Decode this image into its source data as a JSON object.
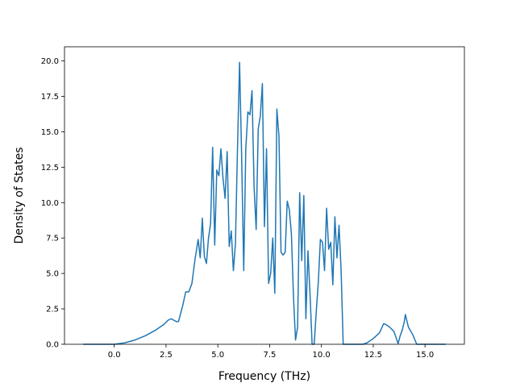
{
  "chart_data": {
    "type": "line",
    "title": "",
    "xlabel": "Frequency (THz)",
    "ylabel": "Density of States",
    "xlim": [
      -2.4,
      16.9
    ],
    "ylim": [
      0,
      21.0
    ],
    "xticks": [
      0.0,
      2.5,
      5.0,
      7.5,
      10.0,
      12.5,
      15.0
    ],
    "xtick_labels": [
      "0.0",
      "2.5",
      "5.0",
      "7.5",
      "10.0",
      "12.5",
      "15.0"
    ],
    "yticks": [
      0.0,
      2.5,
      5.0,
      7.5,
      10.0,
      12.5,
      15.0,
      17.5,
      20.0
    ],
    "ytick_labels": [
      "0.0",
      "2.5",
      "5.0",
      "7.5",
      "10.0",
      "12.5",
      "15.0",
      "17.5",
      "20.0"
    ],
    "grid": false,
    "color": "#1f77b4",
    "series": [
      {
        "x": [
          -1.5,
          0.0,
          0.5,
          1.0,
          1.5,
          2.0,
          2.4,
          2.6,
          2.75,
          3.0,
          3.1,
          3.3,
          3.45,
          3.6,
          3.75,
          3.9,
          4.05,
          4.15,
          4.25,
          4.35,
          4.45,
          4.55,
          4.65,
          4.75,
          4.85,
          4.95,
          5.05,
          5.15,
          5.25,
          5.35,
          5.45,
          5.55,
          5.65,
          5.75,
          5.85,
          5.95,
          6.05,
          6.15,
          6.25,
          6.35,
          6.45,
          6.55,
          6.65,
          6.75,
          6.85,
          6.95,
          7.05,
          7.15,
          7.25,
          7.35,
          7.45,
          7.55,
          7.65,
          7.75,
          7.85,
          7.95,
          8.05,
          8.15,
          8.25,
          8.35,
          8.45,
          8.55,
          8.65,
          8.75,
          8.85,
          8.95,
          9.05,
          9.15,
          9.25,
          9.35,
          9.45,
          9.55,
          9.65,
          9.75,
          9.85,
          9.95,
          10.05,
          10.15,
          10.25,
          10.35,
          10.45,
          10.55,
          10.65,
          10.75,
          10.85,
          10.95,
          11.05,
          11.5,
          12.0,
          12.2,
          12.5,
          12.8,
          13.0,
          13.1,
          13.3,
          13.5,
          13.7,
          13.8,
          13.9,
          14.0,
          14.05,
          14.2,
          14.4,
          14.6,
          15.0,
          16.0
        ],
        "y": [
          0.0,
          0.0,
          0.1,
          0.3,
          0.6,
          1.0,
          1.4,
          1.7,
          1.8,
          1.6,
          1.6,
          2.7,
          3.7,
          3.7,
          4.3,
          6.0,
          7.4,
          6.1,
          8.9,
          6.2,
          5.7,
          7.5,
          8.5,
          13.9,
          7.0,
          12.3,
          11.9,
          13.8,
          11.7,
          10.3,
          13.6,
          6.9,
          8.0,
          5.2,
          7.1,
          13.9,
          19.9,
          13.2,
          5.2,
          13.8,
          16.4,
          16.2,
          17.9,
          11.1,
          8.1,
          15.2,
          16.1,
          18.4,
          8.3,
          13.8,
          4.3,
          5.0,
          7.5,
          3.6,
          16.6,
          14.7,
          6.5,
          6.3,
          6.5,
          10.1,
          9.5,
          7.8,
          3.4,
          0.3,
          1.2,
          10.7,
          5.9,
          10.5,
          1.8,
          6.6,
          3.5,
          0.0,
          0.0,
          2.3,
          4.4,
          7.4,
          7.2,
          5.2,
          9.6,
          6.7,
          7.2,
          4.2,
          9.0,
          6.1,
          8.4,
          5.2,
          0.0,
          0.0,
          0.0,
          0.1,
          0.4,
          0.8,
          1.45,
          1.4,
          1.2,
          0.9,
          0.05,
          0.6,
          1.0,
          1.6,
          2.1,
          1.2,
          0.7,
          0.0,
          0.0,
          0.0
        ]
      }
    ]
  }
}
